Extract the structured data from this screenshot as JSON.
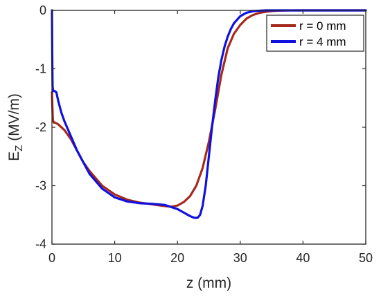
{
  "chart_data": {
    "type": "line",
    "title": "",
    "xlabel": "z (mm)",
    "ylabel_main": "E",
    "ylabel_sub": "Z",
    "ylabel_rest": " (MV/m)",
    "xlim": [
      0,
      50
    ],
    "ylim": [
      -4,
      0
    ],
    "xticks": [
      "0",
      "10",
      "20",
      "30",
      "40",
      "50"
    ],
    "yticks": [
      "0",
      "-1",
      "-2",
      "-3",
      "-4"
    ],
    "grid": false,
    "legend_position": "top-right",
    "series": [
      {
        "name": "r = 0 mm",
        "color": "#a52a1e",
        "x": [
          0,
          0.05,
          0.15,
          0.3,
          0.5,
          1,
          2,
          3,
          4,
          5,
          6,
          8,
          10,
          12,
          14,
          16,
          18,
          19,
          20,
          21,
          22,
          23,
          24,
          25,
          26,
          27,
          28,
          29,
          30,
          31,
          32,
          33,
          34,
          35,
          36,
          38,
          40,
          45,
          50
        ],
        "y": [
          -1.4,
          -1.6,
          -1.88,
          -1.92,
          -1.92,
          -1.95,
          -2.05,
          -2.2,
          -2.4,
          -2.6,
          -2.75,
          -3.0,
          -3.15,
          -3.24,
          -3.29,
          -3.32,
          -3.35,
          -3.36,
          -3.34,
          -3.28,
          -3.18,
          -3.0,
          -2.7,
          -2.25,
          -1.7,
          -1.1,
          -0.65,
          -0.4,
          -0.25,
          -0.14,
          -0.08,
          -0.045,
          -0.025,
          -0.012,
          -0.005,
          -0.001,
          0,
          0,
          0
        ]
      },
      {
        "name": "r = 4 mm",
        "color": "#1010e0",
        "x": [
          0,
          0.05,
          0.1,
          0.2,
          0.4,
          0.7,
          1,
          1.5,
          2,
          3,
          4,
          5,
          6,
          8,
          10,
          12,
          14,
          16,
          18,
          20,
          21,
          22,
          22.7,
          23.2,
          23.6,
          24,
          24.5,
          25,
          25.5,
          26,
          26.5,
          27,
          27.5,
          28,
          28.5,
          29,
          30,
          31,
          32,
          33,
          34,
          36,
          40,
          45,
          50
        ],
        "y": [
          0,
          -0.8,
          -1.3,
          -1.38,
          -1.38,
          -1.4,
          -1.55,
          -1.75,
          -1.9,
          -2.15,
          -2.4,
          -2.6,
          -2.8,
          -3.05,
          -3.2,
          -3.27,
          -3.3,
          -3.31,
          -3.33,
          -3.4,
          -3.46,
          -3.52,
          -3.55,
          -3.55,
          -3.5,
          -3.35,
          -3.0,
          -2.5,
          -2.0,
          -1.55,
          -1.15,
          -0.85,
          -0.62,
          -0.45,
          -0.32,
          -0.22,
          -0.1,
          -0.04,
          -0.015,
          -0.005,
          0,
          0,
          0,
          0,
          0
        ]
      }
    ]
  }
}
